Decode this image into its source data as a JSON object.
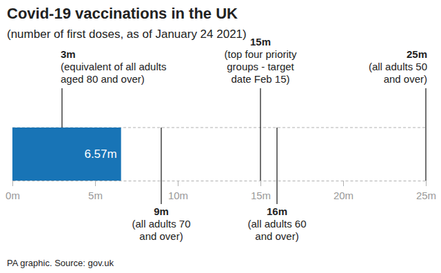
{
  "chart_data": {
    "type": "bar",
    "orientation": "horizontal",
    "title": "Covid-19 vaccinations in the UK",
    "subtitle": "(number of first doses, as of January 24 2021)",
    "categories": [
      null
    ],
    "values": [
      6.57
    ],
    "value_labels": [
      "6.57m"
    ],
    "data_labels": true,
    "tick_labels": "x",
    "color": "#1874b6",
    "xlim": [
      0,
      25
    ],
    "xticks": [
      {
        "value": 0,
        "label": "0m"
      },
      {
        "value": 5,
        "label": "5m"
      },
      {
        "value": 10,
        "label": "10m"
      },
      {
        "value": 15,
        "label": "15m"
      },
      {
        "value": 20,
        "label": "20m"
      },
      {
        "value": 25,
        "label": "25m"
      }
    ],
    "annotations": [
      {
        "value": 3,
        "label": "3m",
        "text": [
          "(equivalent of all adults",
          "aged 80 and over)"
        ]
      },
      {
        "value": 9,
        "label": "9m",
        "text": [
          "(all adults 70",
          "and over)"
        ]
      },
      {
        "value": 15,
        "label": "15m",
        "text": [
          "(top four priority",
          "groups - target",
          "date Feb 15)"
        ]
      },
      {
        "value": 16,
        "label": "16m",
        "text": [
          "(all adults 60",
          "and over)"
        ]
      },
      {
        "value": 25,
        "label": "25m",
        "text": [
          "(all adults 50",
          "and over)"
        ]
      }
    ],
    "source": "PA graphic. Source: gov.uk"
  }
}
